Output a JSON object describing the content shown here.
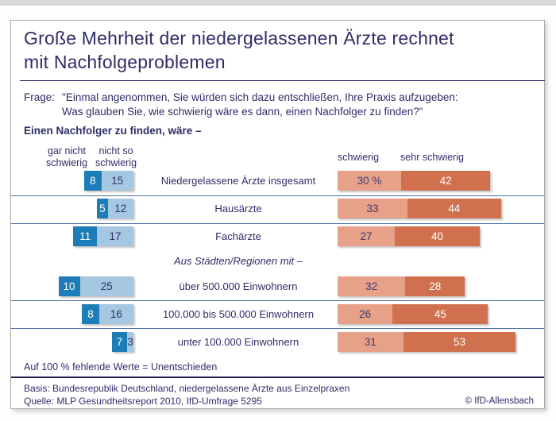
{
  "page": {
    "title_lines": [
      "Große Mehrheit der niedergelassenen Ärzte rechnet",
      "mit Nachfolgeproblemen"
    ],
    "question_label": "Frage:",
    "question_line1": "\"Einmal angenommen, Sie würden sich dazu entschließen, Ihre Praxis aufzugeben:",
    "question_line2": "Was glauben Sie, wie schwierig wäre es dann, einen Nachfolger zu finden?\"",
    "subtitle": "Einen Nachfolger zu finden, wäre –",
    "note": "Auf 100 % fehlende Werte = Unentschieden",
    "basis": "Basis: Bundesrepublik Deutschland, niedergelassene Ärzte aus Einzelpraxen",
    "quelle": "Quelle: MLP Gesundheitsreport 2010, IfD-Umfrage 5295",
    "copyright": "© IfD-Allensbach"
  },
  "chart_data": {
    "type": "bar",
    "orientation": "horizontal-diverging-stacked",
    "unit": "%",
    "title": "Große Mehrheit der niedergelassenen Ärzte rechnet mit Nachfolgeproblemen",
    "legend_left": [
      "gar nicht schwierig",
      "nicht so schwierig"
    ],
    "legend_right": [
      "schwierig",
      "sehr schwierig"
    ],
    "group_label": "Aus Städten/Regionen mit –",
    "rows": [
      {
        "label": "Niedergelassene Ärzte insgesamt",
        "values": [
          8,
          15,
          30,
          42
        ],
        "display": [
          "8",
          "15",
          "30 %",
          "42"
        ]
      },
      {
        "label": "Hausärzte",
        "values": [
          5,
          12,
          33,
          44
        ],
        "display": [
          "5",
          "12",
          "33",
          "44"
        ]
      },
      {
        "label": "Fachärzte",
        "values": [
          11,
          17,
          27,
          40
        ],
        "display": [
          "11",
          "17",
          "27",
          "40"
        ]
      },
      {
        "label": "über 500.000 Einwohnern",
        "values": [
          10,
          25,
          32,
          28
        ],
        "display": [
          "10",
          "25",
          "32",
          "28"
        ],
        "group": "Aus Städten/Regionen mit –"
      },
      {
        "label": "100.000 bis 500.000 Einwohnern",
        "values": [
          8,
          16,
          26,
          45
        ],
        "display": [
          "8",
          "16",
          "26",
          "45"
        ],
        "group": "Aus Städten/Regionen mit –"
      },
      {
        "label": "unter 100.000 Einwohnern",
        "values": [
          7,
          3,
          31,
          53
        ],
        "display": [
          "7",
          "3",
          "31",
          "53"
        ],
        "group": "Aus Städten/Regionen mit –"
      }
    ],
    "series": [
      {
        "name": "gar nicht schwierig",
        "values": [
          8,
          5,
          11,
          10,
          8,
          7
        ]
      },
      {
        "name": "nicht so schwierig",
        "values": [
          15,
          12,
          17,
          25,
          16,
          3
        ]
      },
      {
        "name": "schwierig",
        "values": [
          30,
          33,
          27,
          32,
          26,
          31
        ]
      },
      {
        "name": "sehr schwierig",
        "values": [
          42,
          44,
          40,
          28,
          45,
          53
        ]
      }
    ],
    "colors": {
      "gar_nicht_schwierig": "#1d7db8",
      "nicht_so_schwierig": "#a5c7e1",
      "schwierig": "#e7a189",
      "sehr_schwierig": "#d1704e",
      "text_navy": "#2f2d69",
      "separator": "#4a70a8"
    }
  }
}
